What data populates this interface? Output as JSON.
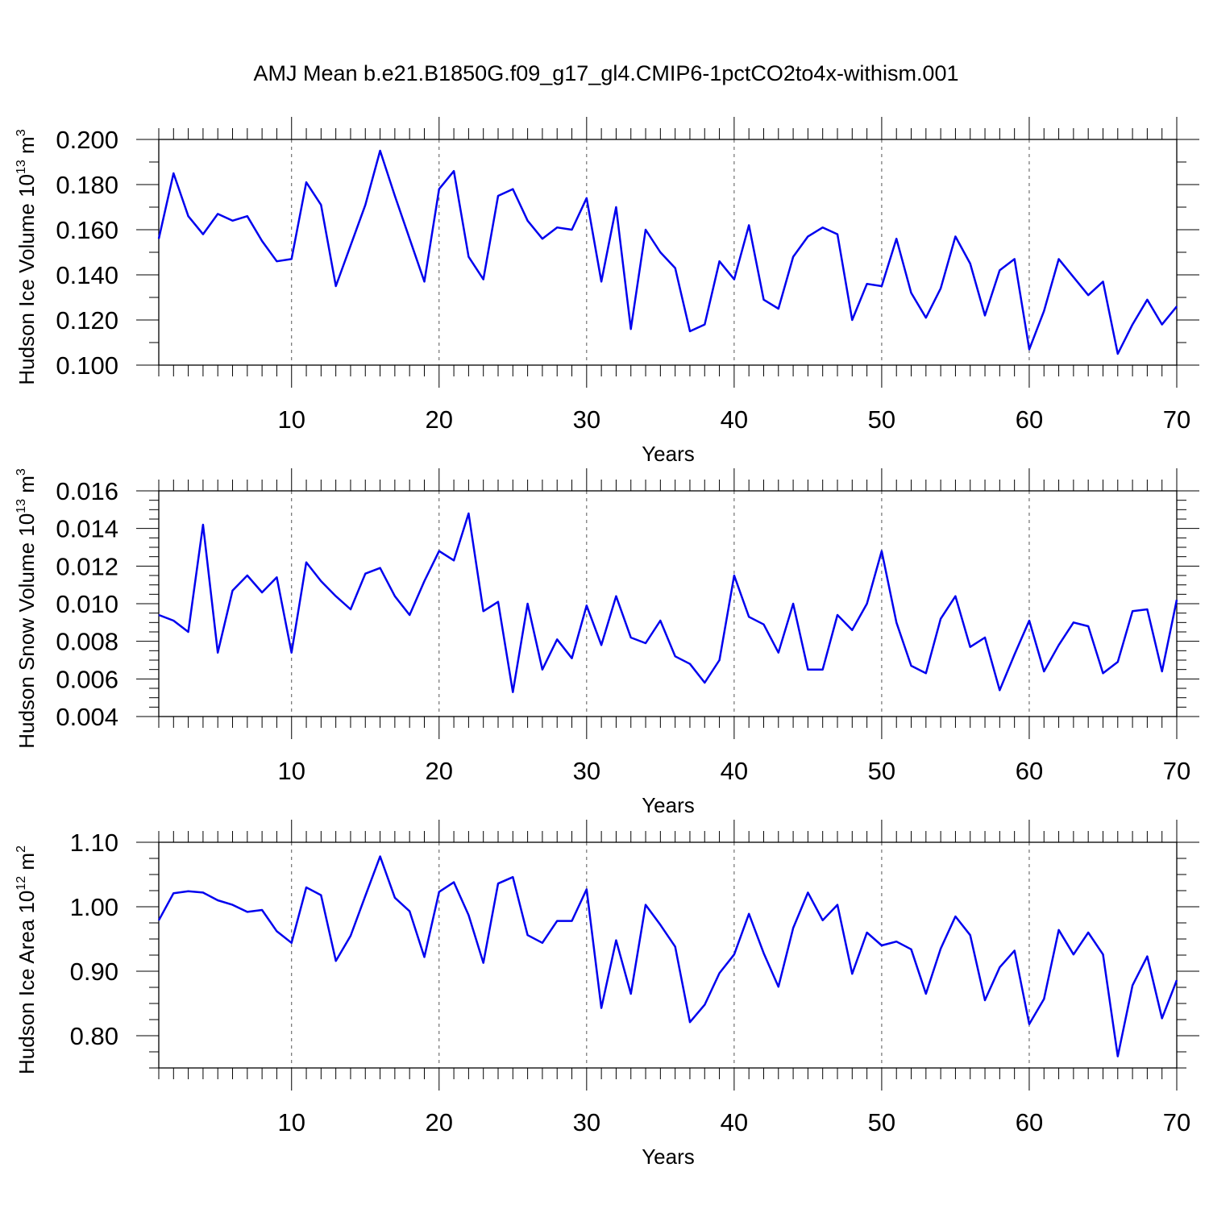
{
  "title": "AMJ Mean b.e21.B1850G.f09_g17_gl4.CMIP6-1pctCO2to4x-withism.001",
  "colors": {
    "line": "#0000ee",
    "axis": "#000000"
  },
  "chart_data": [
    {
      "type": "line",
      "ylabel": "Hudson Ice Volume",
      "ylabel_unit": "10^13 m^3",
      "ylabel_parts": {
        "base": "Hudson Ice Volume 10",
        "exp": "13",
        "unit": " m",
        "unit_exp": "3"
      },
      "xlabel": "Years",
      "xlim": [
        1,
        70
      ],
      "ylim": [
        0.1,
        0.2
      ],
      "yticks": [
        0.1,
        0.12,
        0.14,
        0.16,
        0.18,
        0.2
      ],
      "ytick_labels": [
        "0.100",
        "0.120",
        "0.140",
        "0.160",
        "0.180",
        "0.200"
      ],
      "yminor": 0.01,
      "xticks": [
        10,
        20,
        30,
        40,
        50,
        60,
        70
      ],
      "xtick_labels": [
        "10",
        "20",
        "30",
        "40",
        "50",
        "60",
        "70"
      ],
      "grid": "dashed vertical at major x ticks",
      "series": [
        {
          "name": "Hudson Ice Volume",
          "x": [
            1,
            2,
            3,
            4,
            5,
            6,
            7,
            8,
            9,
            10,
            11,
            12,
            13,
            14,
            15,
            16,
            17,
            18,
            19,
            20,
            21,
            22,
            23,
            24,
            25,
            26,
            27,
            28,
            29,
            30,
            31,
            32,
            33,
            34,
            35,
            36,
            37,
            38,
            39,
            40,
            41,
            42,
            43,
            44,
            45,
            46,
            47,
            48,
            49,
            50,
            51,
            52,
            53,
            54,
            55,
            56,
            57,
            58,
            59,
            60,
            61,
            62,
            63,
            64,
            65,
            66,
            67,
            68,
            69,
            70
          ],
          "values": [
            0.156,
            0.185,
            0.166,
            0.158,
            0.167,
            0.164,
            0.166,
            0.155,
            0.146,
            0.147,
            0.181,
            0.171,
            0.135,
            0.153,
            0.171,
            0.195,
            0.175,
            0.156,
            0.137,
            0.178,
            0.186,
            0.148,
            0.138,
            0.175,
            0.178,
            0.164,
            0.156,
            0.161,
            0.16,
            0.174,
            0.137,
            0.17,
            0.116,
            0.16,
            0.15,
            0.143,
            0.115,
            0.118,
            0.146,
            0.138,
            0.162,
            0.129,
            0.125,
            0.148,
            0.157,
            0.161,
            0.158,
            0.12,
            0.136,
            0.135,
            0.156,
            0.132,
            0.121,
            0.134,
            0.157,
            0.145,
            0.122,
            0.142,
            0.147,
            0.107,
            0.124,
            0.147,
            0.139,
            0.131,
            0.137,
            0.105,
            0.118,
            0.129,
            0.118,
            0.126
          ]
        }
      ]
    },
    {
      "type": "line",
      "ylabel": "Hudson Snow Volume",
      "ylabel_unit": "10^13 m^3",
      "ylabel_parts": {
        "base": "Hudson Snow Volume 10",
        "exp": "13",
        "unit": " m",
        "unit_exp": "3"
      },
      "xlabel": "Years",
      "xlim": [
        1,
        70
      ],
      "ylim": [
        0.004,
        0.016
      ],
      "yticks": [
        0.004,
        0.006,
        0.008,
        0.01,
        0.012,
        0.014,
        0.016
      ],
      "ytick_labels": [
        "0.004",
        "0.006",
        "0.008",
        "0.010",
        "0.012",
        "0.014",
        "0.016"
      ],
      "yminor": 0.0005,
      "xticks": [
        10,
        20,
        30,
        40,
        50,
        60,
        70
      ],
      "xtick_labels": [
        "10",
        "20",
        "30",
        "40",
        "50",
        "60",
        "70"
      ],
      "grid": "dashed vertical at major x ticks",
      "series": [
        {
          "name": "Hudson Snow Volume",
          "x": [
            1,
            2,
            3,
            4,
            5,
            6,
            7,
            8,
            9,
            10,
            11,
            12,
            13,
            14,
            15,
            16,
            17,
            18,
            19,
            20,
            21,
            22,
            23,
            24,
            25,
            26,
            27,
            28,
            29,
            30,
            31,
            32,
            33,
            34,
            35,
            36,
            37,
            38,
            39,
            40,
            41,
            42,
            43,
            44,
            45,
            46,
            47,
            48,
            49,
            50,
            51,
            52,
            53,
            54,
            55,
            56,
            57,
            58,
            59,
            60,
            61,
            62,
            63,
            64,
            65,
            66,
            67,
            68,
            69,
            70
          ],
          "values": [
            0.0094,
            0.0091,
            0.0085,
            0.0142,
            0.0074,
            0.0107,
            0.0115,
            0.0106,
            0.0114,
            0.0074,
            0.0122,
            0.0112,
            0.0104,
            0.0097,
            0.0116,
            0.0119,
            0.0104,
            0.0094,
            0.0112,
            0.0128,
            0.0123,
            0.0148,
            0.0096,
            0.0101,
            0.0053,
            0.01,
            0.0065,
            0.0081,
            0.0071,
            0.0099,
            0.0078,
            0.0104,
            0.0082,
            0.0079,
            0.0091,
            0.0072,
            0.0068,
            0.0058,
            0.007,
            0.0115,
            0.0093,
            0.0089,
            0.0074,
            0.01,
            0.0065,
            0.0065,
            0.0094,
            0.0086,
            0.01,
            0.0128,
            0.009,
            0.0067,
            0.0063,
            0.0092,
            0.0104,
            0.0077,
            0.0082,
            0.0054,
            0.0073,
            0.0091,
            0.0064,
            0.0078,
            0.009,
            0.0088,
            0.0063,
            0.0069,
            0.0096,
            0.0097,
            0.0064,
            0.0102
          ]
        }
      ]
    },
    {
      "type": "line",
      "ylabel": "Hudson Ice Area",
      "ylabel_unit": "10^12 m^2",
      "ylabel_parts": {
        "base": "Hudson Ice Area 10",
        "exp": "12",
        "unit": " m",
        "unit_exp": "2"
      },
      "xlabel": "Years",
      "xlim": [
        1,
        70
      ],
      "ylim": [
        0.75,
        1.1
      ],
      "yticks": [
        0.8,
        0.9,
        1.0,
        1.1
      ],
      "ytick_labels": [
        "0.80",
        "0.90",
        "1.00",
        "1.10"
      ],
      "yminor": 0.025,
      "xticks": [
        10,
        20,
        30,
        40,
        50,
        60,
        70
      ],
      "xtick_labels": [
        "10",
        "20",
        "30",
        "40",
        "50",
        "60",
        "70"
      ],
      "grid": "dashed vertical at major x ticks",
      "series": [
        {
          "name": "Hudson Ice Area",
          "x": [
            1,
            2,
            3,
            4,
            5,
            6,
            7,
            8,
            9,
            10,
            11,
            12,
            13,
            14,
            15,
            16,
            17,
            18,
            19,
            20,
            21,
            22,
            23,
            24,
            25,
            26,
            27,
            28,
            29,
            30,
            31,
            32,
            33,
            34,
            35,
            36,
            37,
            38,
            39,
            40,
            41,
            42,
            43,
            44,
            45,
            46,
            47,
            48,
            49,
            50,
            51,
            52,
            53,
            54,
            55,
            56,
            57,
            58,
            59,
            60,
            61,
            62,
            63,
            64,
            65,
            66,
            67,
            68,
            69,
            70
          ],
          "values": [
            0.979,
            1.021,
            1.024,
            1.022,
            1.01,
            1.003,
            0.992,
            0.995,
            0.962,
            0.944,
            1.03,
            1.018,
            0.916,
            0.955,
            1.017,
            1.078,
            1.014,
            0.993,
            0.922,
            1.023,
            1.038,
            0.987,
            0.913,
            1.036,
            1.046,
            0.956,
            0.944,
            0.978,
            0.978,
            1.027,
            0.843,
            0.948,
            0.865,
            1.003,
            0.972,
            0.938,
            0.821,
            0.848,
            0.897,
            0.926,
            0.989,
            0.928,
            0.876,
            0.967,
            1.022,
            0.979,
            1.003,
            0.896,
            0.96,
            0.94,
            0.946,
            0.934,
            0.865,
            0.935,
            0.985,
            0.956,
            0.855,
            0.906,
            0.932,
            0.818,
            0.857,
            0.964,
            0.926,
            0.96,
            0.926,
            0.768,
            0.878,
            0.923,
            0.827,
            0.886
          ]
        }
      ]
    }
  ]
}
